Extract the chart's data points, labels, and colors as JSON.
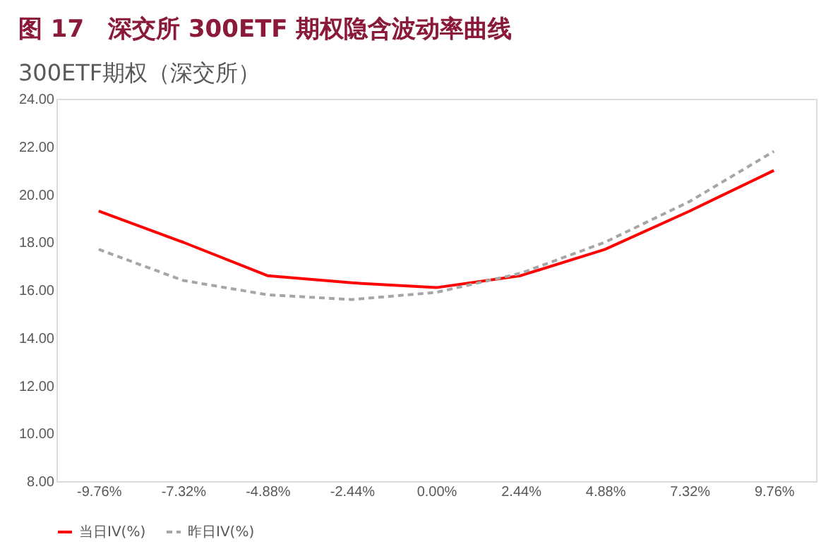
{
  "chart_data": {
    "type": "line",
    "title": "图 17　深交所 300ETF 期权隐含波动率曲线",
    "subtitle": "300ETF期权（深交所）",
    "categories": [
      "-9.76%",
      "-7.32%",
      "-4.88%",
      "-2.44%",
      "0.00%",
      "2.44%",
      "4.88%",
      "7.32%",
      "9.76%"
    ],
    "series": [
      {
        "name": "当日IV(%)",
        "color": "#ff0000",
        "line_style": "solid",
        "values": [
          19.3,
          18.0,
          16.6,
          16.3,
          16.1,
          16.6,
          17.7,
          19.3,
          21.0
        ]
      },
      {
        "name": "昨日IV(%)",
        "color": "#a6a6a6",
        "line_style": "dashed",
        "values": [
          17.7,
          16.4,
          15.8,
          15.6,
          15.9,
          16.7,
          18.0,
          19.7,
          21.8
        ]
      }
    ],
    "ylim": [
      8,
      24
    ],
    "yticks": [
      {
        "value": 8,
        "label": "8.00"
      },
      {
        "value": 10,
        "label": "10.00"
      },
      {
        "value": 12,
        "label": "12.00"
      },
      {
        "value": 14,
        "label": "14.00"
      },
      {
        "value": 16,
        "label": "16.00"
      },
      {
        "value": 18,
        "label": "18.00"
      },
      {
        "value": 20,
        "label": "20.00"
      },
      {
        "value": 22,
        "label": "22.00"
      },
      {
        "value": 24,
        "label": "24.00"
      }
    ],
    "grid": false,
    "legend": "bottom",
    "marker": "none"
  }
}
